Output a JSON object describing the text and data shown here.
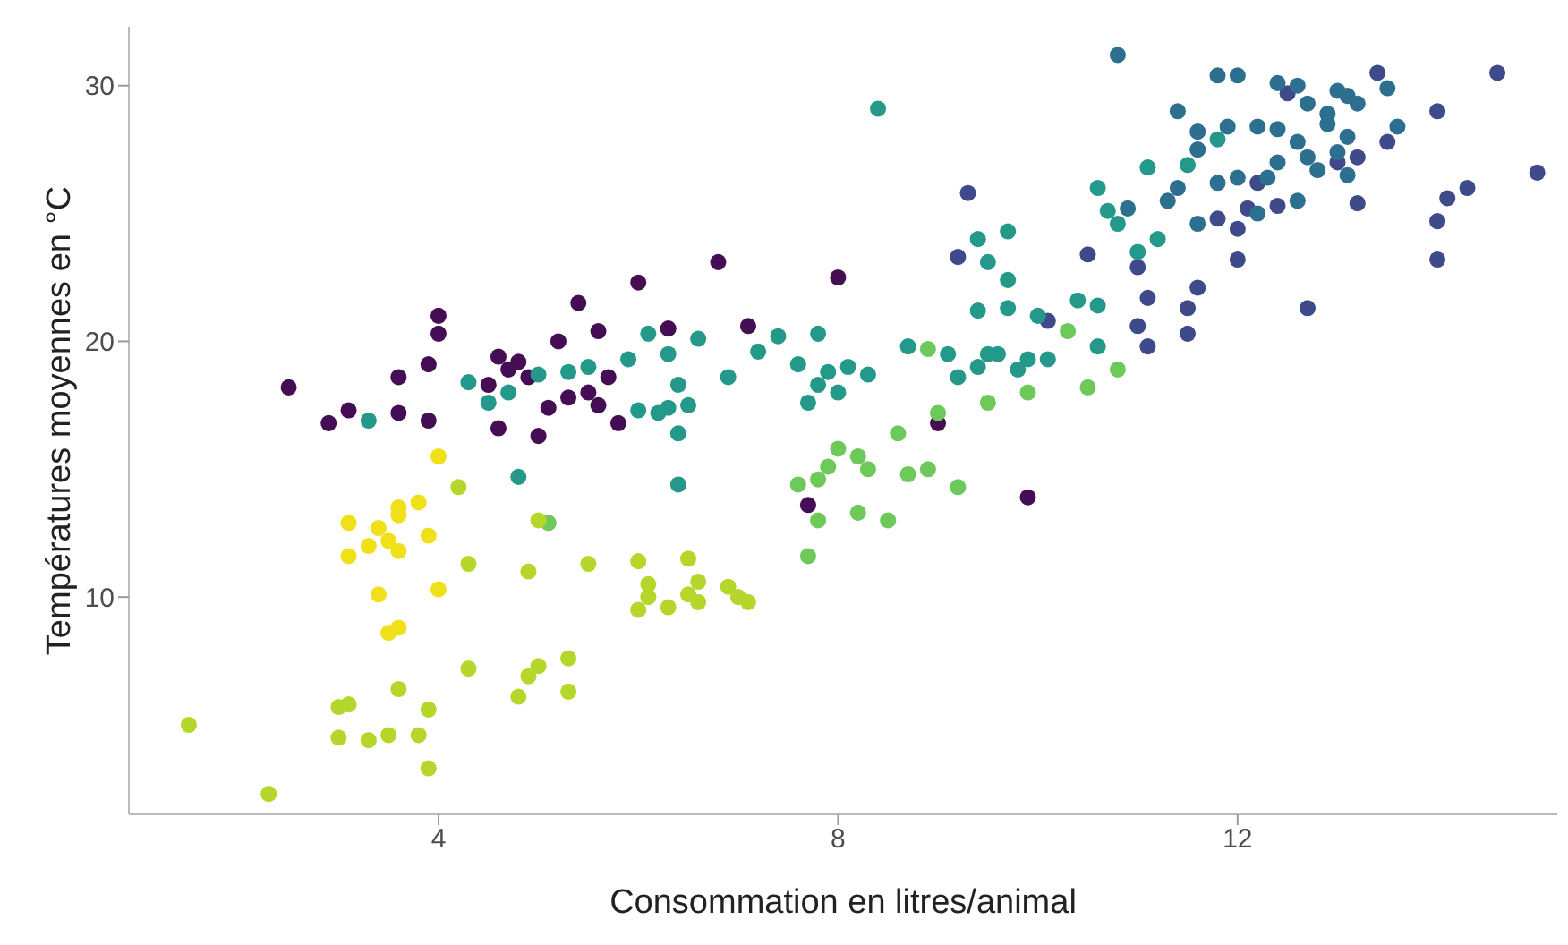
{
  "chart_data": {
    "type": "scatter",
    "xlabel": "Consommation en litres/animal",
    "ylabel": "Températures moyennes en °C",
    "xlim": [
      0.9,
      15.2
    ],
    "ylim": [
      1.5,
      32.3
    ],
    "xticks": [
      4,
      8,
      12
    ],
    "yticks": [
      10,
      20,
      30
    ],
    "grid": false,
    "marker": "circle",
    "series": [
      {
        "color": "#440d54",
        "x": [
          2.5,
          2.9,
          3.1,
          3.6,
          3.9,
          3.6,
          3.9,
          4.0,
          4.0,
          4.6,
          4.7,
          4.8,
          4.9,
          4.5,
          5.2,
          5.4,
          5.1,
          5.5,
          5.6,
          5.8,
          5.6,
          5.7,
          6.0,
          6.3,
          4.6,
          5.0,
          6.8,
          8.0,
          7.1,
          5.3,
          7.7,
          9.0,
          9.9
        ],
        "values": [
          18.2,
          16.8,
          17.3,
          17.2,
          16.9,
          18.6,
          19.1,
          20.3,
          21.0,
          19.4,
          18.9,
          19.2,
          18.6,
          18.3,
          20.0,
          21.5,
          17.4,
          18.0,
          17.5,
          16.8,
          20.4,
          18.6,
          22.3,
          20.5,
          16.6,
          16.3,
          23.1,
          22.5,
          20.6,
          17.8,
          13.6,
          16.8,
          13.9
        ]
      },
      {
        "color": "#3e4a89",
        "x": [
          9.3,
          9.2,
          10.1,
          11.0,
          11.1,
          11.0,
          11.1,
          11.5,
          11.5,
          11.6,
          12.0,
          12.0,
          12.1,
          12.7,
          13.2,
          13.2,
          13.4,
          14.0,
          14.3,
          14.1,
          14.0,
          14.0,
          14.6,
          15.0,
          12.5,
          13.5,
          12.4,
          11.8,
          12.2,
          13.0,
          10.5
        ],
        "values": [
          25.8,
          23.3,
          20.8,
          22.9,
          21.7,
          20.6,
          19.8,
          21.3,
          20.3,
          22.1,
          24.4,
          23.2,
          25.2,
          21.3,
          25.4,
          27.2,
          30.5,
          29.0,
          26.0,
          25.6,
          24.7,
          23.2,
          30.5,
          26.6,
          29.7,
          27.8,
          25.3,
          24.8,
          26.2,
          27.0,
          23.4
        ]
      },
      {
        "color": "#2c6f8e",
        "x": [
          10.8,
          11.4,
          11.6,
          11.6,
          11.8,
          12.0,
          12.4,
          12.6,
          11.9,
          12.2,
          12.4,
          12.7,
          13.0,
          13.1,
          13.2,
          13.5,
          13.6,
          12.9,
          12.6,
          12.7,
          12.8,
          13.0,
          13.1,
          12.4,
          12.3,
          11.8,
          11.4,
          11.6,
          12.0,
          11.3,
          10.9,
          12.2,
          12.6,
          13.1,
          12.9
        ],
        "values": [
          31.2,
          29.0,
          28.2,
          27.5,
          30.4,
          30.4,
          30.1,
          30.0,
          28.4,
          28.4,
          28.3,
          29.3,
          29.8,
          29.6,
          29.3,
          29.9,
          28.4,
          28.5,
          27.8,
          27.2,
          26.7,
          27.4,
          26.5,
          27.0,
          26.4,
          26.2,
          26.0,
          24.6,
          26.4,
          25.5,
          25.2,
          25.0,
          25.5,
          28.0,
          28.9
        ]
      },
      {
        "color": "#24998a",
        "x": [
          8.4,
          10.6,
          10.8,
          11.0,
          11.2,
          10.7,
          11.5,
          11.8,
          11.1,
          9.7,
          9.7,
          9.5,
          9.4,
          9.7,
          9.1,
          9.2,
          9.4,
          9.6,
          9.8,
          9.9,
          10.1,
          10.4,
          10.6,
          10.6,
          10.0,
          9.4,
          9.5,
          4.3,
          4.5,
          3.3,
          4.7,
          5.0,
          5.3,
          5.5,
          5.9,
          6.1,
          6.3,
          6.4,
          6.6,
          6.0,
          6.2,
          6.3,
          6.4,
          6.5,
          6.9,
          7.2,
          7.4,
          7.8,
          7.6,
          7.8,
          7.9,
          8.1,
          7.7,
          6.4,
          4.8,
          8.0,
          8.3,
          8.7
        ],
        "values": [
          29.1,
          26.0,
          24.6,
          23.5,
          24.0,
          25.1,
          26.9,
          27.9,
          26.8,
          22.4,
          24.3,
          23.1,
          24.0,
          21.3,
          19.5,
          18.6,
          19.0,
          19.5,
          18.9,
          19.3,
          19.3,
          21.6,
          21.4,
          19.8,
          21.0,
          21.2,
          19.5,
          18.4,
          17.6,
          16.9,
          18.0,
          18.7,
          18.8,
          19.0,
          19.3,
          20.3,
          19.5,
          18.3,
          20.1,
          17.3,
          17.2,
          17.4,
          16.4,
          17.5,
          18.6,
          19.6,
          20.2,
          20.3,
          19.1,
          18.3,
          18.8,
          19.0,
          17.6,
          14.4,
          14.7,
          18.0,
          18.7,
          19.8
        ]
      },
      {
        "color": "#6cc95a",
        "x": [
          5.1,
          8.2,
          8.3,
          8.6,
          8.7,
          8.9,
          9.2,
          7.8,
          7.6,
          7.9,
          8.0,
          7.7,
          7.8,
          8.2,
          8.5,
          9.0,
          9.5,
          8.9,
          10.3,
          10.8,
          10.5,
          9.9
        ],
        "values": [
          12.9,
          15.5,
          15.0,
          16.4,
          14.8,
          15.0,
          14.3,
          14.6,
          14.4,
          15.1,
          15.8,
          11.6,
          13.0,
          13.3,
          13.0,
          17.2,
          17.6,
          19.7,
          20.4,
          18.9,
          18.2,
          18.0
        ]
      },
      {
        "color": "#b5d72b",
        "x": [
          1.5,
          2.3,
          3.0,
          3.0,
          3.3,
          3.1,
          3.6,
          3.9,
          3.8,
          3.9,
          3.5,
          4.3,
          4.3,
          4.8,
          4.9,
          5.0,
          5.3,
          5.3,
          5.5,
          6.0,
          6.1,
          6.0,
          6.1,
          6.3,
          6.5,
          6.5,
          6.6,
          6.6,
          6.9,
          7.1,
          7.0,
          4.9,
          5.0,
          4.2
        ],
        "values": [
          5.0,
          2.3,
          5.7,
          4.5,
          4.4,
          5.8,
          6.4,
          5.6,
          4.6,
          3.3,
          4.6,
          11.3,
          7.2,
          6.1,
          6.9,
          7.3,
          7.6,
          6.3,
          11.3,
          11.4,
          10.5,
          9.5,
          10.0,
          9.6,
          10.1,
          11.5,
          10.6,
          9.8,
          10.4,
          9.8,
          10.0,
          11.0,
          13.0,
          14.3
        ]
      },
      {
        "color": "#f0e01a",
        "x": [
          3.1,
          3.1,
          3.3,
          3.5,
          3.6,
          3.6,
          3.8,
          3.6,
          3.4,
          3.9,
          3.4,
          3.5,
          3.6,
          4.0,
          4.0
        ],
        "values": [
          12.9,
          11.6,
          12.0,
          12.2,
          11.8,
          13.5,
          13.7,
          13.2,
          12.7,
          12.4,
          10.1,
          8.6,
          8.8,
          10.3,
          15.5
        ]
      }
    ]
  }
}
